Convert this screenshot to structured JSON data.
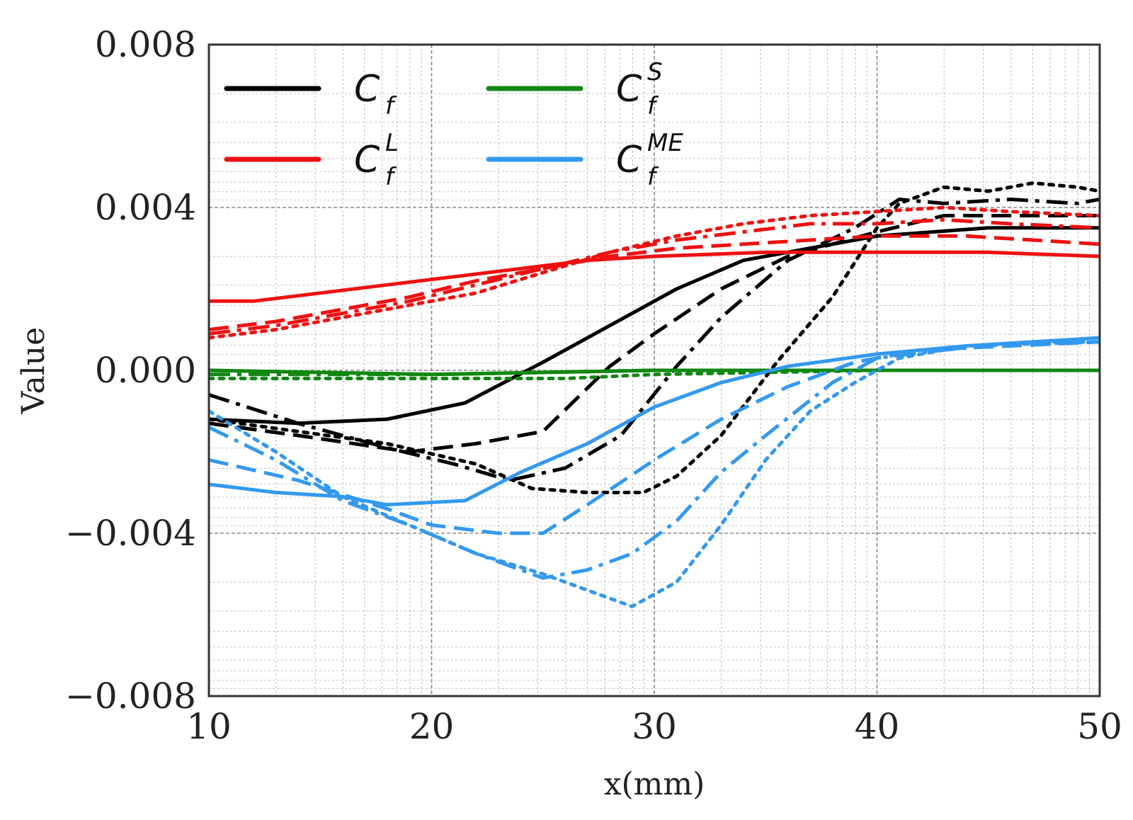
{
  "chart_data": {
    "type": "line",
    "title": "",
    "xlabel": "x(mm)",
    "ylabel": "Value",
    "xlim": [
      10,
      50
    ],
    "ylim": [
      -0.008,
      0.008
    ],
    "xticks": [
      "10",
      "20",
      "30",
      "40",
      "50"
    ],
    "xtick_values": [
      10,
      20,
      30,
      40,
      50
    ],
    "yticks": [
      "−0.008",
      "−0.004",
      "0.000",
      "0.004",
      "0.008"
    ],
    "ytick_values": [
      -0.008,
      -0.004,
      0.0,
      0.004,
      0.008
    ],
    "grid": true,
    "legend_position": "top-left",
    "colors": {
      "Cf": "#000000",
      "CfL": "#ee1111",
      "CfS": "#118811",
      "CfME": "#3399ee"
    },
    "legend": [
      {
        "key": "Cf",
        "base": "C",
        "sub": "f",
        "sup": ""
      },
      {
        "key": "CfS",
        "base": "C",
        "sub": "f",
        "sup": "S"
      },
      {
        "key": "CfL",
        "base": "C",
        "sub": "f",
        "sup": "L"
      },
      {
        "key": "CfME",
        "base": "C",
        "sub": "f",
        "sup": "ME"
      }
    ],
    "series": [
      {
        "name": "Cf",
        "group": "Cf",
        "style": "solid",
        "points": [
          [
            10,
            -0.0012
          ],
          [
            14,
            -0.0013
          ],
          [
            18,
            -0.0012
          ],
          [
            21.5,
            -0.0008
          ],
          [
            25,
            0.0002
          ],
          [
            28,
            0.0011
          ],
          [
            31,
            0.002
          ],
          [
            34,
            0.0027
          ],
          [
            37,
            0.003
          ],
          [
            40,
            0.0033
          ],
          [
            45,
            0.0035
          ],
          [
            50,
            0.0035
          ]
        ]
      },
      {
        "name": "Cf",
        "group": "Cf",
        "style": "dashed",
        "points": [
          [
            10,
            -0.0013
          ],
          [
            14,
            -0.0016
          ],
          [
            19,
            -0.002
          ],
          [
            22,
            -0.0018
          ],
          [
            25,
            -0.0015
          ],
          [
            28,
            0.0001
          ],
          [
            30,
            0.0009
          ],
          [
            33,
            0.002
          ],
          [
            36,
            0.0028
          ],
          [
            40,
            0.0034
          ],
          [
            43,
            0.0038
          ],
          [
            50,
            0.0038
          ]
        ]
      },
      {
        "name": "Cf",
        "group": "Cf",
        "style": "dashdot",
        "points": [
          [
            10,
            -0.0006
          ],
          [
            14,
            -0.0013
          ],
          [
            18,
            -0.0019
          ],
          [
            21,
            -0.0023
          ],
          [
            23.5,
            -0.0027
          ],
          [
            26,
            -0.0024
          ],
          [
            28.5,
            -0.0016
          ],
          [
            31,
            0.0001
          ],
          [
            33,
            0.0013
          ],
          [
            36,
            0.0027
          ],
          [
            39,
            0.0035
          ],
          [
            41,
            0.0042
          ],
          [
            43,
            0.0041
          ],
          [
            46,
            0.0042
          ],
          [
            49,
            0.0041
          ],
          [
            50,
            0.0042
          ]
        ]
      },
      {
        "name": "Cf",
        "group": "Cf",
        "style": "dotted",
        "points": [
          [
            10,
            -0.0012
          ],
          [
            14,
            -0.0015
          ],
          [
            18,
            -0.0018
          ],
          [
            22,
            -0.0023
          ],
          [
            24.5,
            -0.0029
          ],
          [
            27,
            -0.003
          ],
          [
            29.5,
            -0.003
          ],
          [
            31,
            -0.0026
          ],
          [
            33,
            -0.0016
          ],
          [
            35.5,
            0.0002
          ],
          [
            38,
            0.0018
          ],
          [
            40,
            0.0035
          ],
          [
            41,
            0.0041
          ],
          [
            43,
            0.0045
          ],
          [
            45,
            0.0044
          ],
          [
            47,
            0.0046
          ],
          [
            49,
            0.0045
          ],
          [
            50,
            0.0044
          ]
        ]
      },
      {
        "name": "CfL",
        "group": "CfL",
        "style": "solid",
        "points": [
          [
            10,
            0.0017
          ],
          [
            12,
            0.0017
          ],
          [
            15,
            0.0019
          ],
          [
            18,
            0.0021
          ],
          [
            21,
            0.0023
          ],
          [
            24,
            0.0025
          ],
          [
            27,
            0.0027
          ],
          [
            30,
            0.0028
          ],
          [
            35,
            0.0029
          ],
          [
            40,
            0.0029
          ],
          [
            45,
            0.0029
          ],
          [
            50,
            0.0028
          ]
        ]
      },
      {
        "name": "CfL",
        "group": "CfL",
        "style": "dashed",
        "points": [
          [
            10,
            0.001
          ],
          [
            13,
            0.0012
          ],
          [
            16,
            0.0015
          ],
          [
            19,
            0.0018
          ],
          [
            22,
            0.0022
          ],
          [
            25,
            0.0025
          ],
          [
            28,
            0.0028
          ],
          [
            31,
            0.003
          ],
          [
            34,
            0.0031
          ],
          [
            37,
            0.0032
          ],
          [
            40,
            0.0033
          ],
          [
            44,
            0.0033
          ],
          [
            47,
            0.0032
          ],
          [
            50,
            0.0031
          ]
        ]
      },
      {
        "name": "CfL",
        "group": "CfL",
        "style": "dashdot",
        "points": [
          [
            10,
            0.0009
          ],
          [
            13,
            0.0011
          ],
          [
            16,
            0.0014
          ],
          [
            19,
            0.0017
          ],
          [
            22,
            0.0021
          ],
          [
            25,
            0.0025
          ],
          [
            28,
            0.0029
          ],
          [
            31,
            0.0032
          ],
          [
            34,
            0.0034
          ],
          [
            37,
            0.0036
          ],
          [
            40,
            0.0036
          ],
          [
            43,
            0.0037
          ],
          [
            46,
            0.0036
          ],
          [
            50,
            0.0035
          ]
        ]
      },
      {
        "name": "CfL",
        "group": "CfL",
        "style": "dotted",
        "points": [
          [
            10,
            0.0008
          ],
          [
            13,
            0.001
          ],
          [
            16,
            0.0013
          ],
          [
            19,
            0.0016
          ],
          [
            22,
            0.0019
          ],
          [
            25,
            0.0024
          ],
          [
            28,
            0.0029
          ],
          [
            31,
            0.0033
          ],
          [
            34,
            0.0036
          ],
          [
            37,
            0.0038
          ],
          [
            40,
            0.0039
          ],
          [
            43,
            0.004
          ],
          [
            46,
            0.0039
          ],
          [
            50,
            0.0038
          ]
        ]
      },
      {
        "name": "CfS",
        "group": "CfS",
        "style": "solid",
        "points": [
          [
            10,
            0.0
          ],
          [
            20,
            -0.0001
          ],
          [
            30,
            0.0
          ],
          [
            40,
            0.0
          ],
          [
            50,
            0.0
          ]
        ]
      },
      {
        "name": "CfS",
        "group": "CfS",
        "style": "dashed",
        "points": [
          [
            10,
            0.0
          ],
          [
            20,
            -0.0001
          ],
          [
            30,
            0.0
          ],
          [
            40,
            0.0
          ],
          [
            50,
            0.0
          ]
        ]
      },
      {
        "name": "CfS",
        "group": "CfS",
        "style": "dashdot",
        "points": [
          [
            10,
            -0.0001
          ],
          [
            20,
            -0.0001
          ],
          [
            30,
            0.0
          ],
          [
            40,
            0.0
          ],
          [
            50,
            0.0
          ]
        ]
      },
      {
        "name": "CfS",
        "group": "CfS",
        "style": "dotted",
        "points": [
          [
            10,
            -0.0002
          ],
          [
            20,
            -0.0002
          ],
          [
            26,
            -0.0002
          ],
          [
            30,
            -0.0001
          ],
          [
            40,
            0.0
          ],
          [
            50,
            0.0
          ]
        ]
      },
      {
        "name": "CfME",
        "group": "CfME",
        "style": "solid",
        "points": [
          [
            10,
            -0.0028
          ],
          [
            13,
            -0.003
          ],
          [
            16,
            -0.0031
          ],
          [
            18,
            -0.0033
          ],
          [
            21.5,
            -0.0032
          ],
          [
            24,
            -0.0025
          ],
          [
            27,
            -0.0018
          ],
          [
            30,
            -0.0009
          ],
          [
            33,
            -0.0003
          ],
          [
            36,
            0.0001
          ],
          [
            40,
            0.0004
          ],
          [
            44,
            0.0006
          ],
          [
            50,
            0.0008
          ]
        ]
      },
      {
        "name": "CfME",
        "group": "CfME",
        "style": "dashed",
        "points": [
          [
            10,
            -0.0022
          ],
          [
            14,
            -0.0027
          ],
          [
            18,
            -0.0034
          ],
          [
            20,
            -0.0038
          ],
          [
            23,
            -0.004
          ],
          [
            25,
            -0.004
          ],
          [
            27,
            -0.0033
          ],
          [
            30,
            -0.0022
          ],
          [
            33,
            -0.0012
          ],
          [
            36,
            -0.0004
          ],
          [
            39,
            0.0002
          ],
          [
            42,
            0.0005
          ],
          [
            46,
            0.0006
          ],
          [
            50,
            0.0007
          ]
        ]
      },
      {
        "name": "CfME",
        "group": "CfME",
        "style": "dashdot",
        "points": [
          [
            10,
            -0.0014
          ],
          [
            13,
            -0.0022
          ],
          [
            16,
            -0.0032
          ],
          [
            19,
            -0.0038
          ],
          [
            22,
            -0.0045
          ],
          [
            25,
            -0.0051
          ],
          [
            27,
            -0.0049
          ],
          [
            29,
            -0.0045
          ],
          [
            31,
            -0.0037
          ],
          [
            33,
            -0.0025
          ],
          [
            35,
            -0.0016
          ],
          [
            38,
            -0.0003
          ],
          [
            40,
            0.0003
          ],
          [
            43,
            0.0005
          ],
          [
            47,
            0.0007
          ],
          [
            50,
            0.0007
          ]
        ]
      },
      {
        "name": "CfME",
        "group": "CfME",
        "style": "dotted",
        "points": [
          [
            10,
            -0.001
          ],
          [
            13,
            -0.002
          ],
          [
            16,
            -0.0031
          ],
          [
            19,
            -0.0038
          ],
          [
            22,
            -0.0045
          ],
          [
            25,
            -0.005
          ],
          [
            27,
            -0.0054
          ],
          [
            29,
            -0.0058
          ],
          [
            31,
            -0.0052
          ],
          [
            33,
            -0.0038
          ],
          [
            35,
            -0.0022
          ],
          [
            37,
            -0.001
          ],
          [
            39,
            -0.0003
          ],
          [
            41,
            0.0003
          ],
          [
            44,
            0.0006
          ],
          [
            50,
            0.0007
          ]
        ]
      }
    ]
  }
}
